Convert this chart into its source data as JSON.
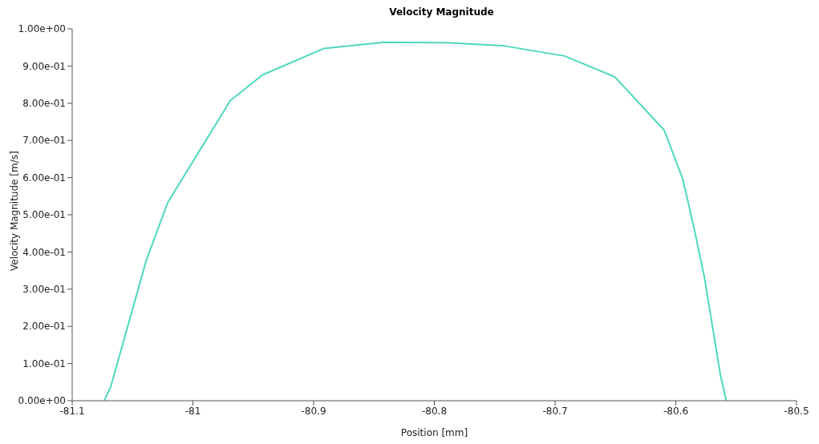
{
  "chart_data": {
    "type": "line",
    "title": "Velocity Magnitude",
    "xlabel": "Position [mm]",
    "ylabel": "Velocity Magnitude [m/s]",
    "series": [
      {
        "color": "#4fd8be",
        "x": [
          -81.0736,
          -81.0681,
          -81.0386,
          -81.0207,
          -80.969,
          -80.9424,
          -80.8917,
          -80.8418,
          -80.7905,
          -80.7435,
          -80.6921,
          -80.6506,
          -80.6097,
          -80.5944,
          -80.5851,
          -80.5763,
          -80.5631,
          -80.5582
        ],
        "values": [
          0,
          0.037,
          0.378,
          0.534,
          0.807,
          0.876,
          0.947,
          0.964,
          0.963,
          0.955,
          0.927,
          0.871,
          0.728,
          0.598,
          0.467,
          0.332,
          0.07,
          0
        ]
      }
    ],
    "xlim": [
      -81.1,
      -80.5
    ],
    "xticks": [
      -81.1,
      -81,
      -80.9,
      -80.8,
      -80.7,
      -80.6,
      -80.5
    ],
    "ylim": [
      0,
      1
    ],
    "yticks": [
      {
        "value": 0,
        "label": "0.00e+00"
      },
      {
        "value": 0.1,
        "label": "1.00e-01"
      },
      {
        "value": 0.2,
        "label": "2.00e-01"
      },
      {
        "value": 0.3,
        "label": "3.00e-01"
      },
      {
        "value": 0.4,
        "label": "4.00e-01"
      },
      {
        "value": 0.5,
        "label": "5.00e-01"
      },
      {
        "value": 0.6,
        "label": "6.00e-01"
      },
      {
        "value": 0.7,
        "label": "7.00e-01"
      },
      {
        "value": 0.8,
        "label": "8.00e-01"
      },
      {
        "value": 0.9,
        "label": "9.00e-01"
      },
      {
        "value": 1,
        "label": "1.00e+00"
      }
    ],
    "grid": false,
    "legend": false,
    "marker": "none",
    "line_style": "solid"
  }
}
